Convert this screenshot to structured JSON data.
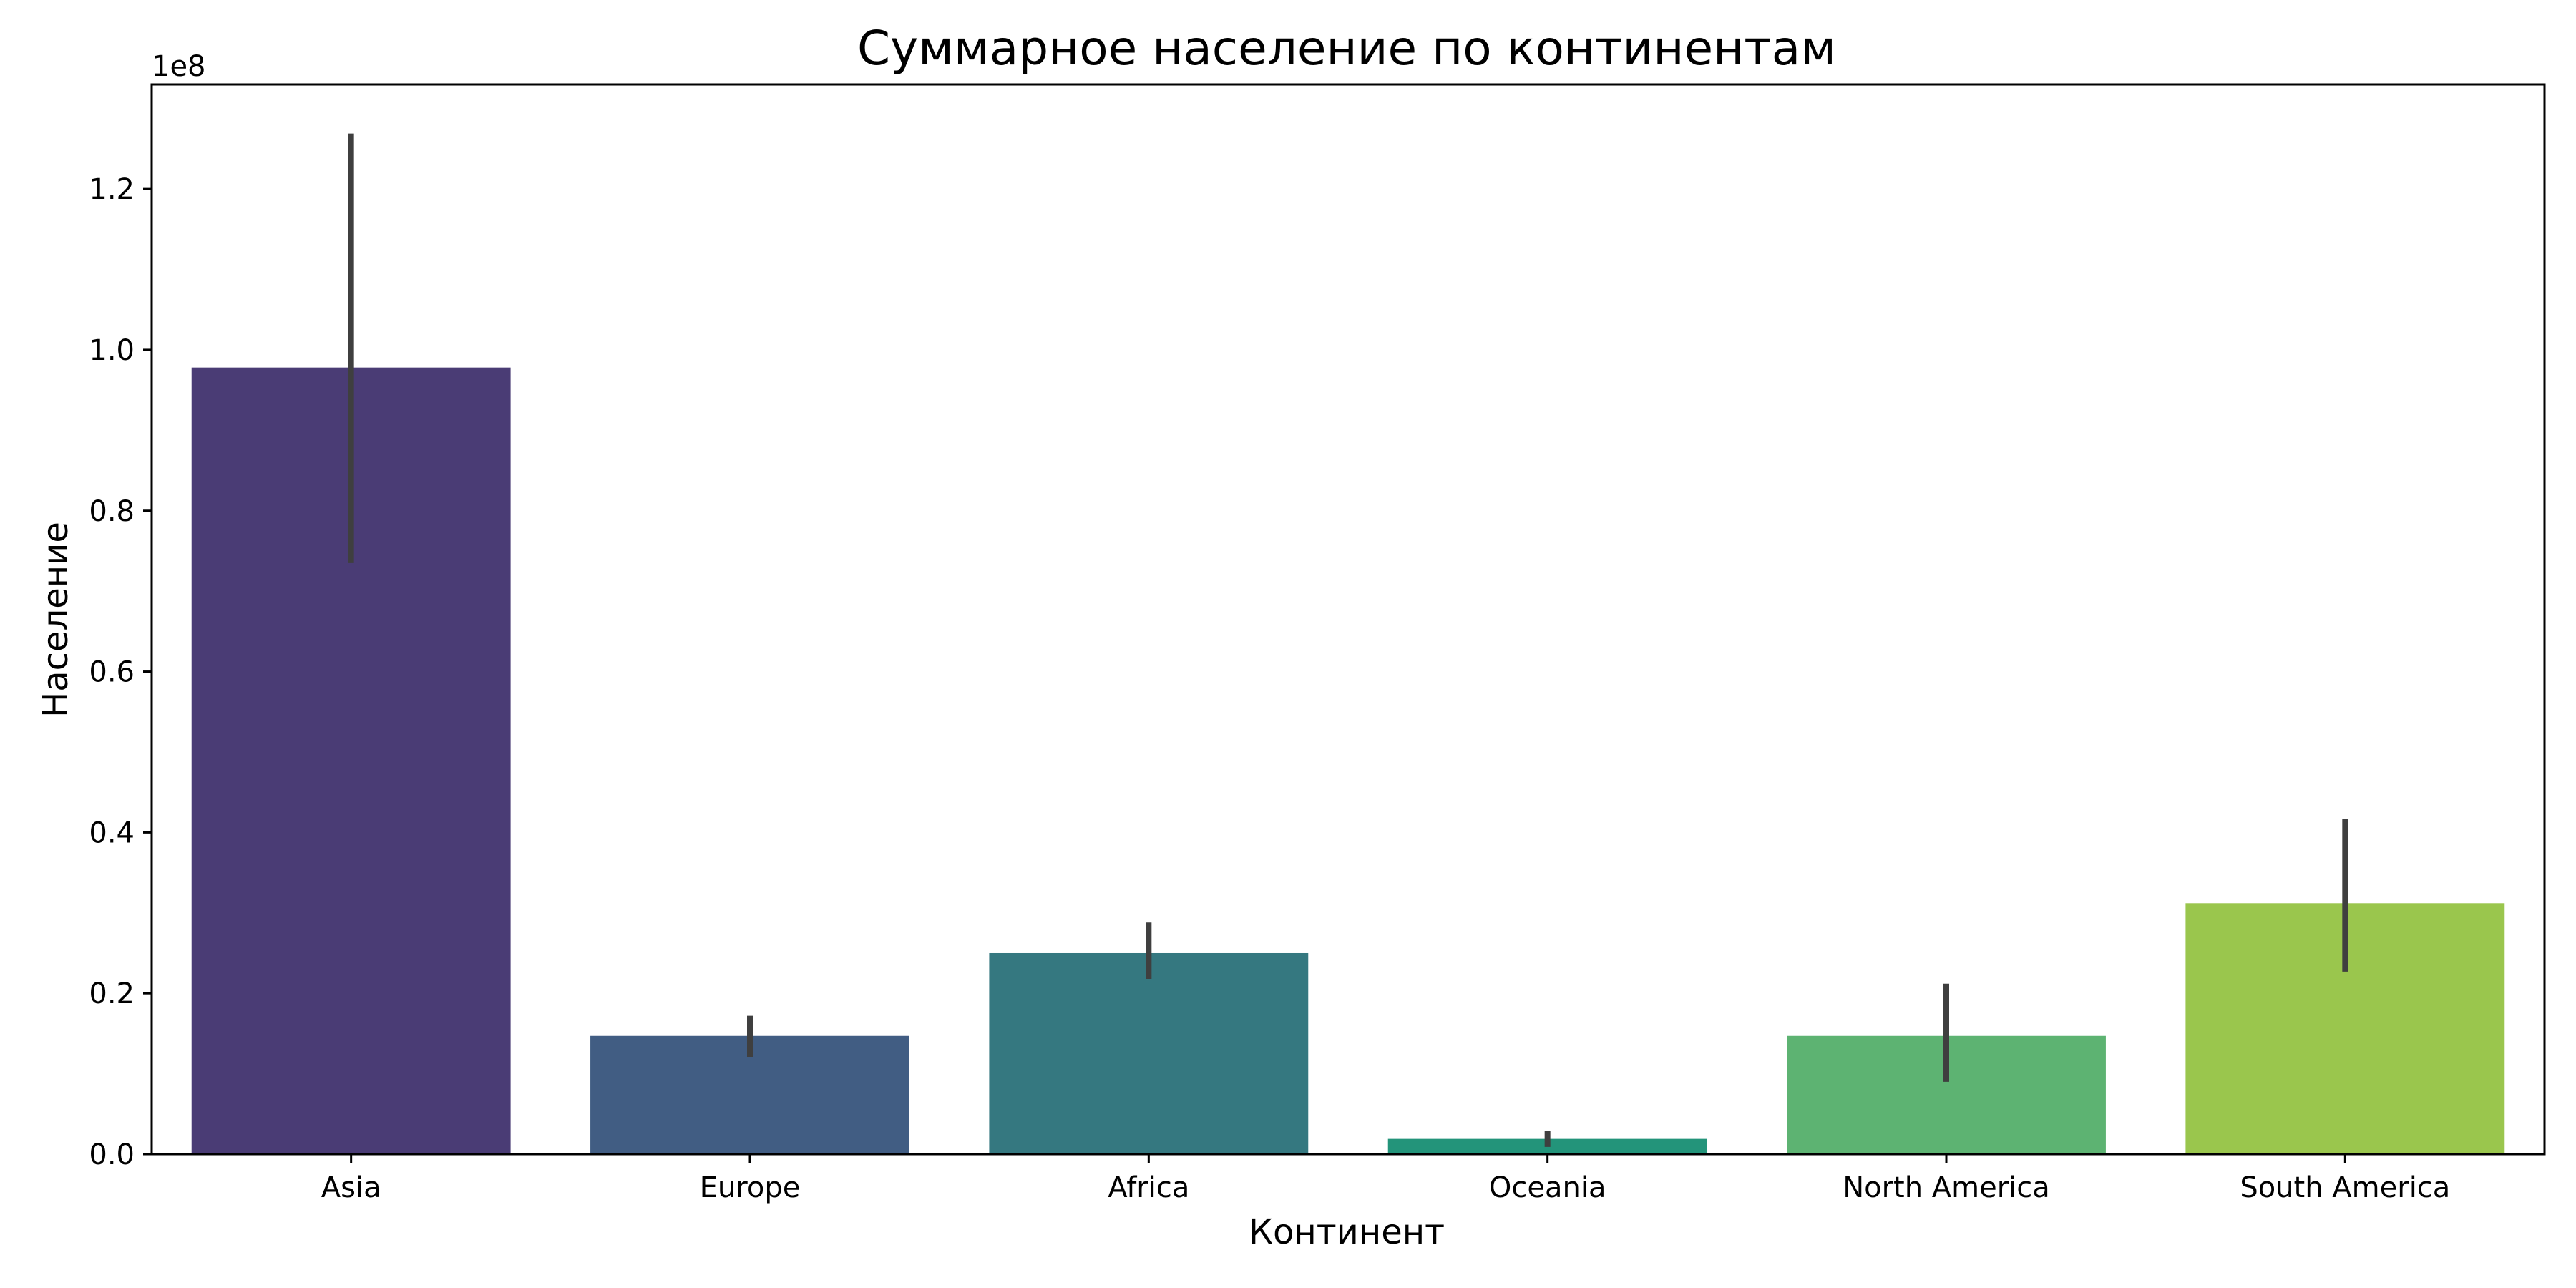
{
  "chart_data": {
    "type": "bar",
    "title": "Суммарное население по континентам",
    "xlabel": "Континент",
    "ylabel": "Население",
    "y_offset_label": "1e8",
    "categories": [
      "Asia",
      "Europe",
      "Africa",
      "Oceania",
      "North America",
      "South America"
    ],
    "values": [
      97800000,
      14700000,
      25000000,
      1900000,
      14700000,
      31200000
    ],
    "error_low": [
      73500000,
      12100000,
      21800000,
      900000,
      9000000,
      22700000
    ],
    "error_high": [
      126900000,
      17200000,
      28800000,
      2900000,
      21200000,
      41700000
    ],
    "yticks": [
      0,
      20000000,
      40000000,
      60000000,
      80000000,
      100000000,
      120000000
    ],
    "ytick_labels": [
      "0.0",
      "0.2",
      "0.4",
      "0.6",
      "0.8",
      "1.0",
      "1.2"
    ],
    "ylim": [
      0,
      133000000
    ],
    "grid": false,
    "colors": [
      "#4a3c75",
      "#415d83",
      "#357880",
      "#23947a",
      "#5db372",
      "#9ac64d"
    ],
    "errorbar_color": "#3f3f3f"
  }
}
